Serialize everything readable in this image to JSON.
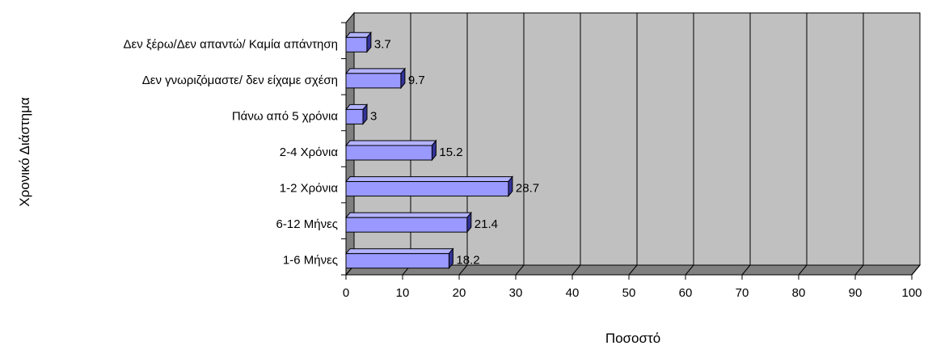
{
  "chart_data": {
    "type": "bar",
    "orientation": "horizontal",
    "style": "3d",
    "categories": [
      "1-6 Μήνες",
      "6-12 Μήνες",
      "1-2 Χρόνια",
      "2-4 Χρόνια",
      "Πάνω από 5 χρόνια",
      "Δεν γνωριζόμαστε/ δεν είχαμε σχέση",
      "Δεν ξέρω/Δεν απαντώ/ Καμία απάντηση"
    ],
    "values": [
      18.2,
      21.4,
      28.7,
      15.2,
      3,
      9.7,
      3.7
    ],
    "data_labels": [
      "18.2",
      "21.4",
      "28.7",
      "15.2",
      "3",
      "9.7",
      "3.7"
    ],
    "title": "",
    "xlabel": "Ποσοστό",
    "ylabel": "Χρονικό Διάστημα",
    "xlim": [
      0,
      100
    ],
    "xticks": [
      "0",
      "10",
      "20",
      "30",
      "40",
      "50",
      "60",
      "70",
      "80",
      "90",
      "100"
    ],
    "grid": true,
    "legend": "none",
    "colors": {
      "bar_front": "#9999FF",
      "bar_top": "#B3B3FF",
      "bar_side": "#333399",
      "plot_back": "#C0C0C0",
      "plot_floor": "#808080",
      "gridline": "#000000"
    }
  }
}
